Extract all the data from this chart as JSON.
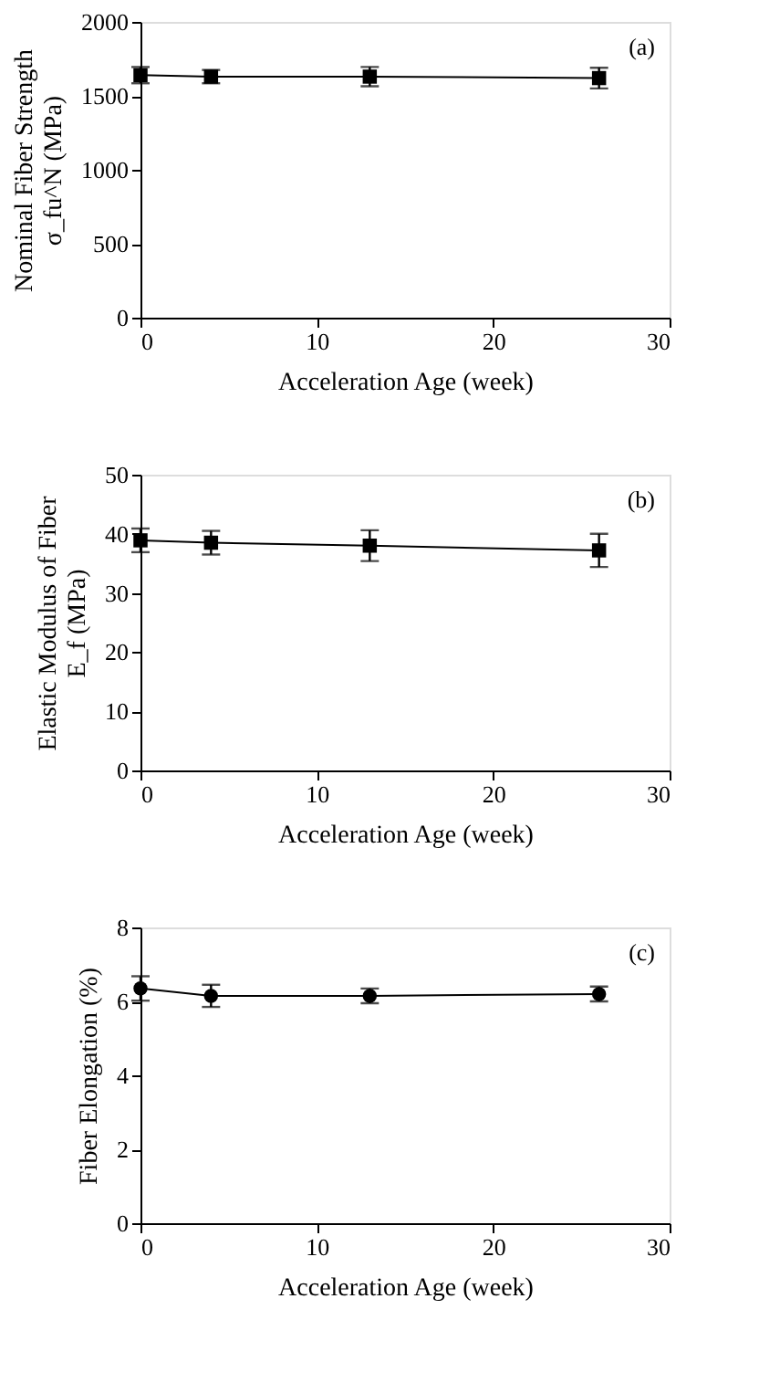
{
  "chart_data": [
    {
      "type": "line",
      "xlabel": "Acceleration Age (week)",
      "ylabel": "Nominal Fiber Strength\nσ_fu^N (MPa)",
      "annotations": [
        "(a)"
      ],
      "x": [
        0,
        4,
        13,
        26
      ],
      "xlim": [
        0,
        30
      ],
      "xticks": [
        0,
        10,
        20,
        30
      ],
      "ylim": [
        0,
        2000
      ],
      "yticks": [
        0,
        500,
        1000,
        1500,
        2000
      ],
      "marker": "square",
      "line_style": "solid",
      "series": [
        {
          "color": "#000000",
          "values": [
            1640,
            1630,
            1630,
            1620
          ],
          "errors": [
            55,
            45,
            65,
            70
          ]
        }
      ]
    },
    {
      "type": "line",
      "xlabel": "Acceleration Age (week)",
      "ylabel": "Elastic Modulus of Fiber\nE_f (MPa)",
      "annotations": [
        "(b)"
      ],
      "x": [
        0,
        4,
        13,
        26
      ],
      "xlim": [
        0,
        30
      ],
      "xticks": [
        0,
        10,
        20,
        30
      ],
      "ylim": [
        0,
        50
      ],
      "yticks": [
        0,
        10,
        20,
        30,
        40,
        50
      ],
      "marker": "square",
      "line_style": "solid",
      "series": [
        {
          "color": "#000000",
          "values": [
            38.9,
            38.5,
            38.0,
            37.2
          ],
          "errors": [
            2.0,
            2.0,
            2.6,
            2.8
          ]
        }
      ]
    },
    {
      "type": "line",
      "xlabel": "Acceleration Age (week)",
      "ylabel": "Fiber Elongation (%)",
      "annotations": [
        "(c)"
      ],
      "x": [
        0,
        4,
        13,
        26
      ],
      "xlim": [
        0,
        30
      ],
      "xticks": [
        0,
        10,
        20,
        30
      ],
      "ylim": [
        0,
        8
      ],
      "yticks": [
        0,
        2,
        4,
        6,
        8
      ],
      "marker": "circle",
      "line_style": "solid",
      "series": [
        {
          "color": "#000000",
          "values": [
            6.35,
            6.15,
            6.15,
            6.2
          ],
          "errors": [
            0.33,
            0.3,
            0.2,
            0.2
          ]
        }
      ]
    }
  ]
}
